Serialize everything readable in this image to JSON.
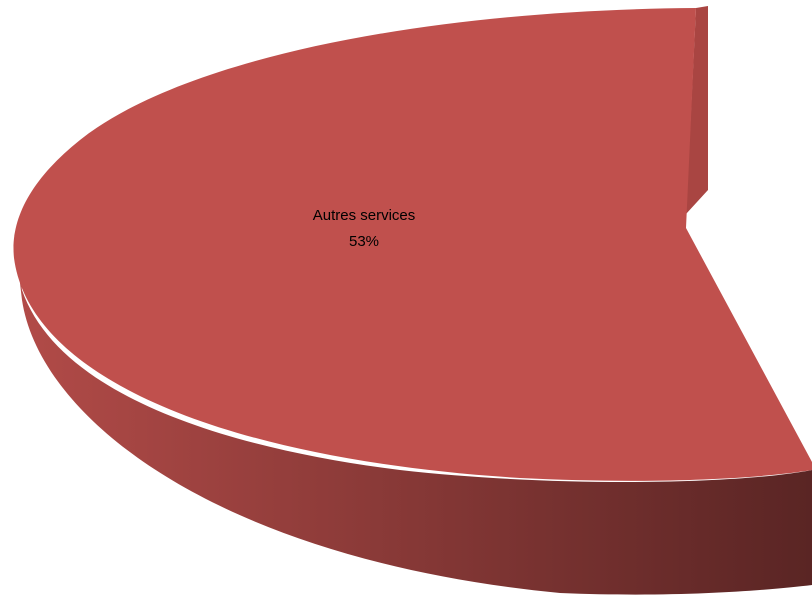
{
  "chart_data": {
    "type": "pie",
    "title": "",
    "slices": [
      {
        "label": "Autres services",
        "value": 53,
        "value_label": "53%",
        "color": "#c0504d"
      }
    ],
    "style": "3d",
    "legend": "none"
  },
  "colors": {
    "slice_top": "#c0504d",
    "slice_side_light": "#b24b48",
    "slice_side_dark": "#5a2524"
  }
}
